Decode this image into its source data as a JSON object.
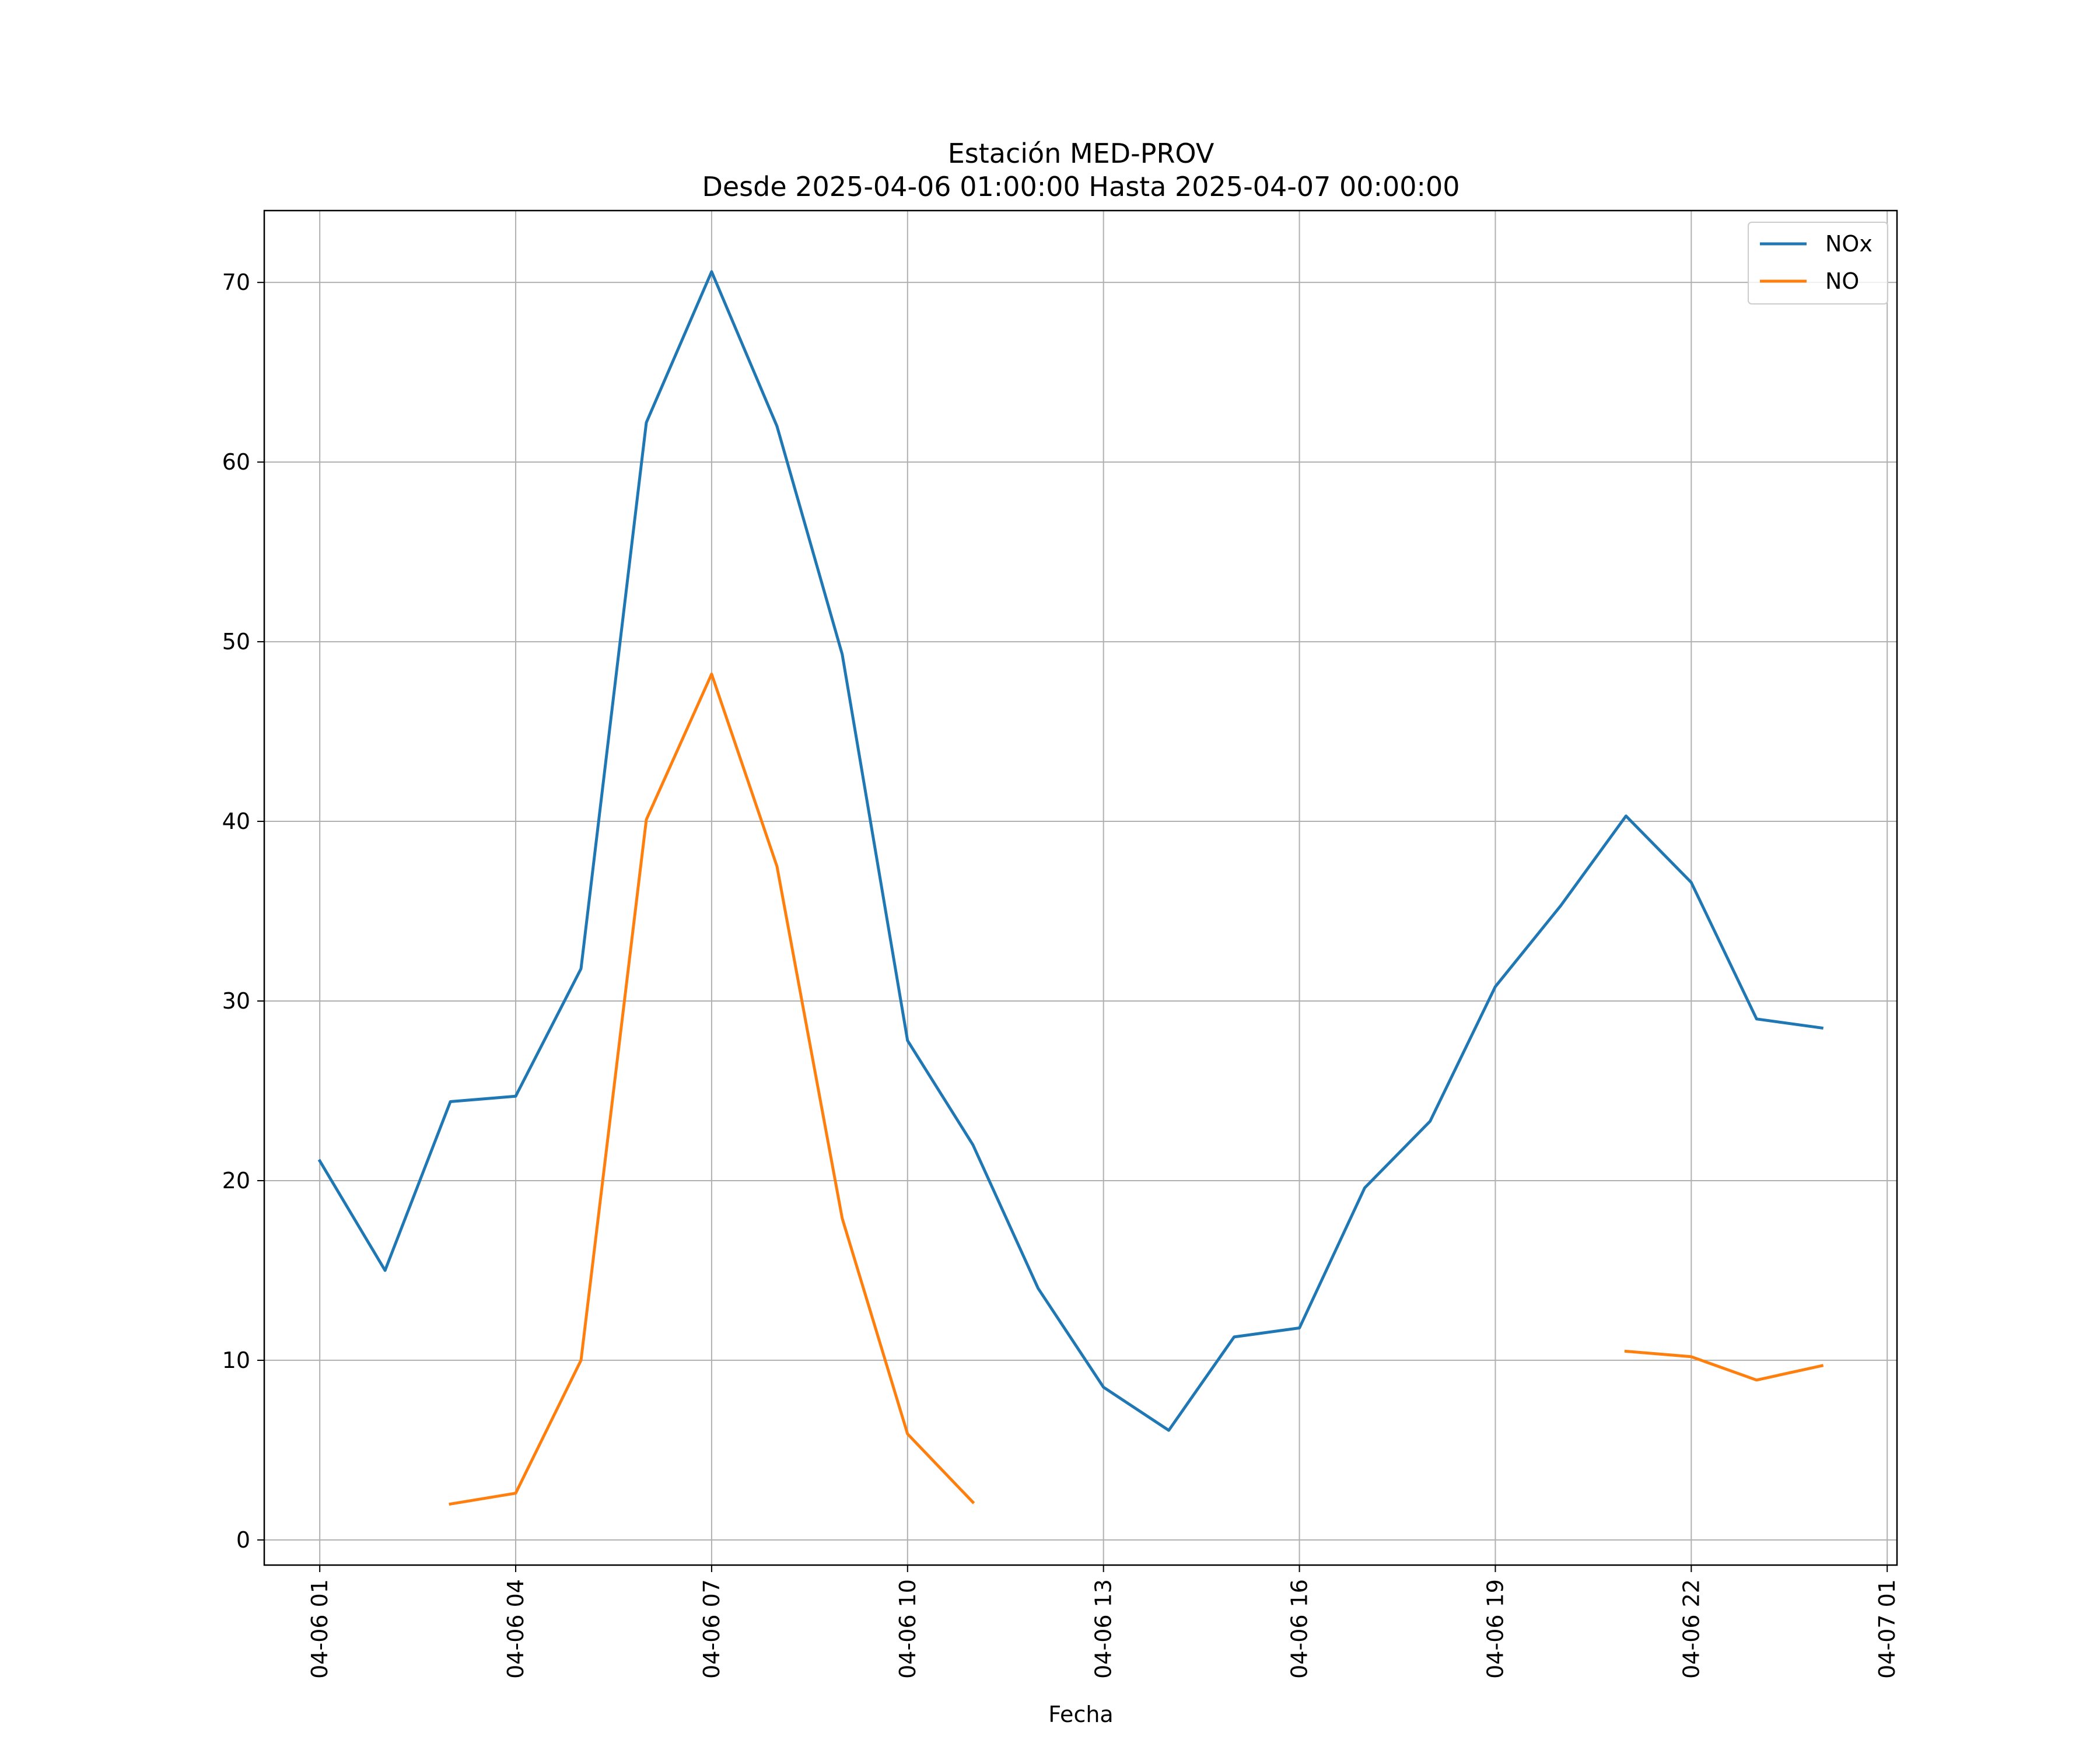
{
  "chart_data": {
    "type": "line",
    "title_line1": "Estación MED-PROV",
    "title_line2": "Desde 2025-04-06 01:00:00 Hasta 2025-04-07 00:00:00",
    "xlabel": "Fecha",
    "ylabel": "",
    "x": [
      "2025-04-06 01:00",
      "2025-04-06 02:00",
      "2025-04-06 03:00",
      "2025-04-06 04:00",
      "2025-04-06 05:00",
      "2025-04-06 06:00",
      "2025-04-06 07:00",
      "2025-04-06 08:00",
      "2025-04-06 09:00",
      "2025-04-06 10:00",
      "2025-04-06 11:00",
      "2025-04-06 12:00",
      "2025-04-06 13:00",
      "2025-04-06 14:00",
      "2025-04-06 15:00",
      "2025-04-06 16:00",
      "2025-04-06 17:00",
      "2025-04-06 18:00",
      "2025-04-06 19:00",
      "2025-04-06 20:00",
      "2025-04-06 21:00",
      "2025-04-06 22:00",
      "2025-04-06 23:00",
      "2025-04-07 00:00"
    ],
    "x_ticks": [
      "04-06 01",
      "04-06 04",
      "04-06 07",
      "04-06 10",
      "04-06 13",
      "04-06 16",
      "04-06 19",
      "04-06 22",
      "04-07 01"
    ],
    "x_tick_values": [
      "2025-04-06 01:00",
      "2025-04-06 04:00",
      "2025-04-06 07:00",
      "2025-04-06 10:00",
      "2025-04-06 13:00",
      "2025-04-06 16:00",
      "2025-04-06 19:00",
      "2025-04-06 22:00",
      "2025-04-07 01:00"
    ],
    "xlim": [
      "2025-04-06 00:09",
      "2025-04-07 01:09"
    ],
    "y_ticks": [
      0,
      10,
      20,
      30,
      40,
      50,
      60,
      70
    ],
    "ylim": [
      -1.4,
      74
    ],
    "grid": true,
    "legend_position": "top-right",
    "series": [
      {
        "name": "NOx",
        "color": "#1f77b4",
        "values": [
          21.1,
          15.0,
          24.4,
          24.7,
          31.8,
          62.2,
          70.6,
          62.0,
          49.3,
          27.8,
          22.0,
          14.0,
          8.5,
          6.1,
          11.3,
          11.8,
          19.6,
          23.3,
          30.8,
          35.3,
          40.3,
          36.6,
          29.0,
          28.5
        ]
      },
      {
        "name": "NO",
        "color": "#ff7f0e",
        "values": [
          null,
          null,
          2.0,
          2.6,
          10.0,
          40.1,
          48.2,
          37.5,
          17.9,
          5.9,
          2.1,
          null,
          null,
          null,
          null,
          null,
          null,
          null,
          null,
          null,
          10.5,
          10.2,
          8.9,
          9.7
        ]
      }
    ]
  }
}
